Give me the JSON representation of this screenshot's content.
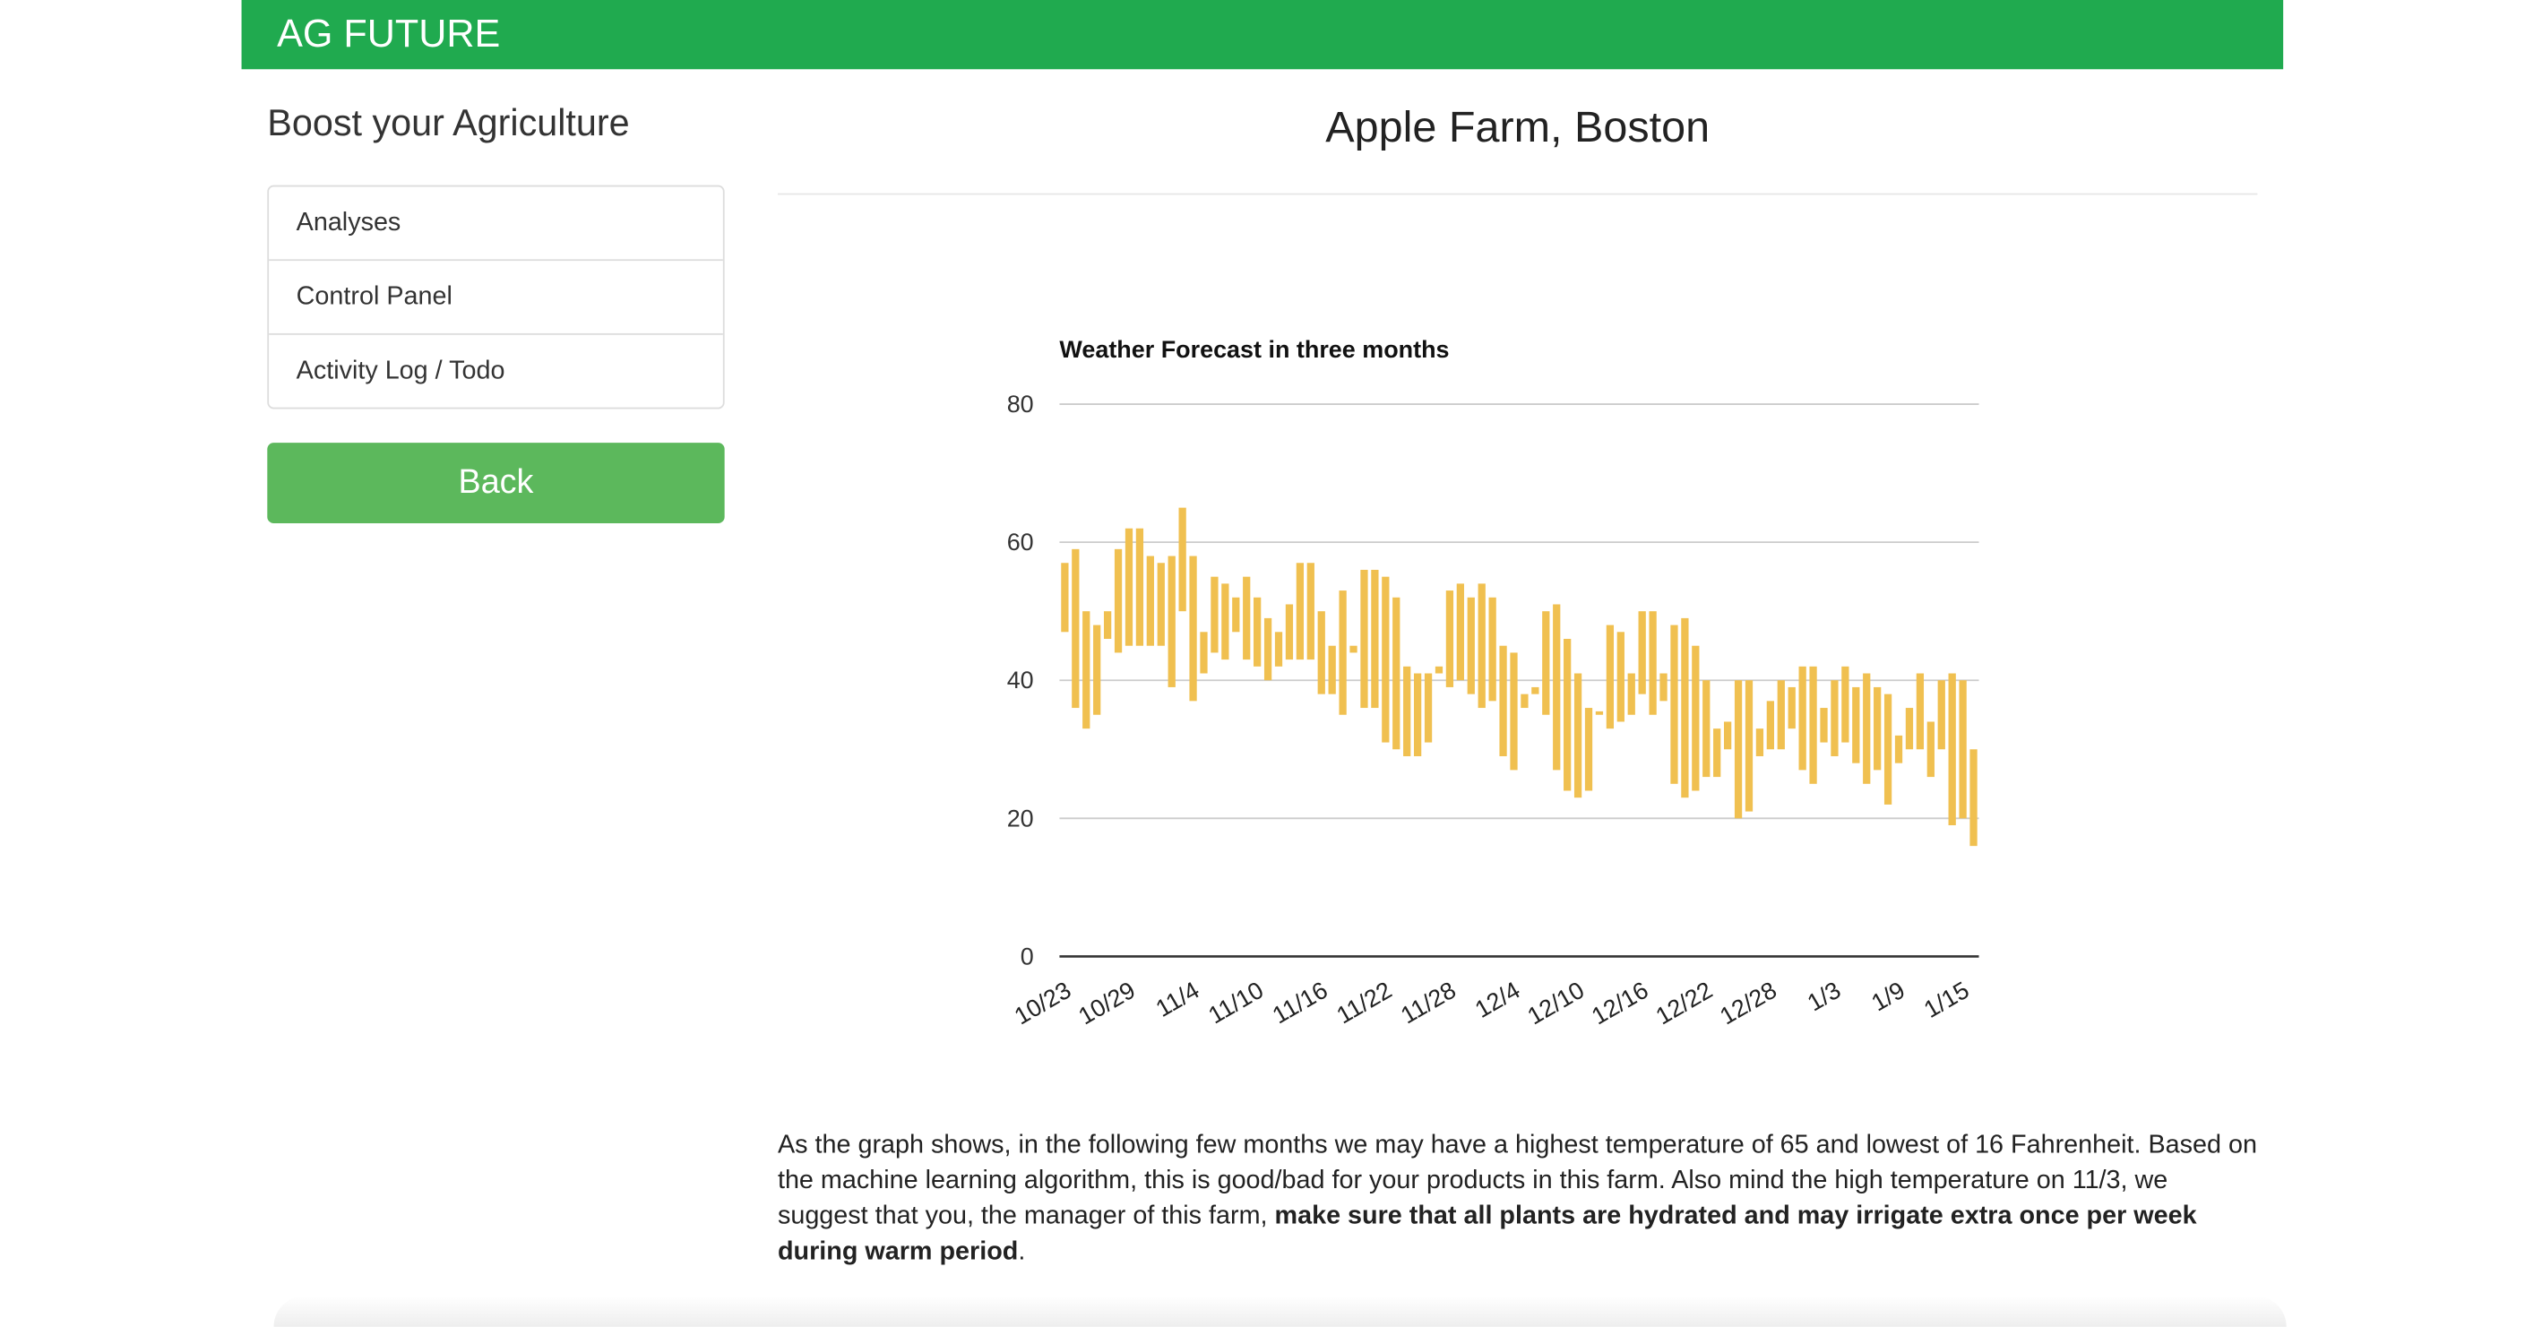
{
  "header": {
    "brand": "AG FUTURE"
  },
  "sidebar": {
    "title": "Boost your Agriculture",
    "menu": [
      "Analyses",
      "Control Panel",
      "Activity Log / Todo"
    ],
    "button": "Back"
  },
  "main": {
    "title": "Apple Farm, Boston",
    "description": [
      {
        "text": "As the graph shows, in the following few months we may have a highest temperature of 65 and lowest of 16 Fahrenheit. Based on the machine learning algorithm, this is good/bad for your products in this farm. Also mind the high temperature on 11/3, we suggest that you, the manager of this farm, "
      },
      {
        "text": "make sure that all plants are hydrated and may irrigate extra once per week during warm period",
        "bold": true
      },
      {
        "text": "."
      }
    ]
  },
  "chart_data": {
    "type": "floating-bar",
    "title": "Weather Forecast in three months",
    "color": "#f0c050",
    "grid": true,
    "ylim": [
      0,
      80
    ],
    "yticks": [
      0,
      20,
      40,
      60,
      80
    ],
    "categories": [
      "10/23",
      null,
      null,
      null,
      null,
      null,
      "10/29",
      null,
      null,
      null,
      null,
      null,
      "11/4",
      null,
      null,
      null,
      null,
      null,
      "11/10",
      null,
      null,
      null,
      null,
      null,
      "11/16",
      null,
      null,
      null,
      null,
      null,
      "11/22",
      null,
      null,
      null,
      null,
      null,
      "11/28",
      null,
      null,
      null,
      null,
      null,
      "12/4",
      null,
      null,
      null,
      null,
      null,
      "12/10",
      null,
      null,
      null,
      null,
      null,
      "12/16",
      null,
      null,
      null,
      null,
      null,
      "12/22",
      null,
      null,
      null,
      null,
      null,
      "12/28",
      null,
      null,
      null,
      null,
      null,
      "1/3",
      null,
      null,
      null,
      null,
      null,
      "1/9",
      null,
      null,
      null,
      null,
      null,
      "1/15",
      null
    ],
    "low": [
      47,
      36,
      33,
      35,
      46,
      44,
      45,
      45,
      45,
      45,
      39,
      50,
      37,
      41,
      44,
      43,
      47,
      43,
      42,
      40,
      42,
      43,
      43,
      43,
      38,
      38,
      35,
      44,
      36,
      36,
      31,
      30,
      29,
      29,
      31,
      41,
      39,
      40,
      38,
      36,
      37,
      29,
      27,
      36,
      38,
      35,
      27,
      24,
      23,
      24,
      35,
      33,
      34,
      35,
      38,
      35,
      37,
      25,
      23,
      24,
      26,
      26,
      30,
      20,
      21,
      29,
      30,
      30,
      33,
      27,
      25,
      31,
      29,
      31,
      28,
      25,
      27,
      22,
      28,
      30,
      30,
      26,
      30,
      19,
      20,
      16
    ],
    "high": [
      57,
      59,
      50,
      48,
      50,
      59,
      62,
      62,
      58,
      57,
      58,
      65,
      58,
      47,
      55,
      54,
      52,
      55,
      52,
      49,
      47,
      51,
      57,
      57,
      50,
      45,
      53,
      45,
      56,
      56,
      55,
      52,
      42,
      41,
      41,
      42,
      53,
      54,
      52,
      54,
      52,
      45,
      44,
      38,
      39,
      50,
      51,
      46,
      41,
      36,
      35.5,
      48,
      47,
      41,
      50,
      50,
      41,
      48,
      49,
      45,
      40,
      33,
      34,
      40,
      40,
      33,
      37,
      40,
      39,
      42,
      42,
      36,
      40,
      42,
      39,
      41,
      39,
      38,
      32,
      36,
      41,
      34,
      40,
      41,
      40,
      30
    ]
  }
}
